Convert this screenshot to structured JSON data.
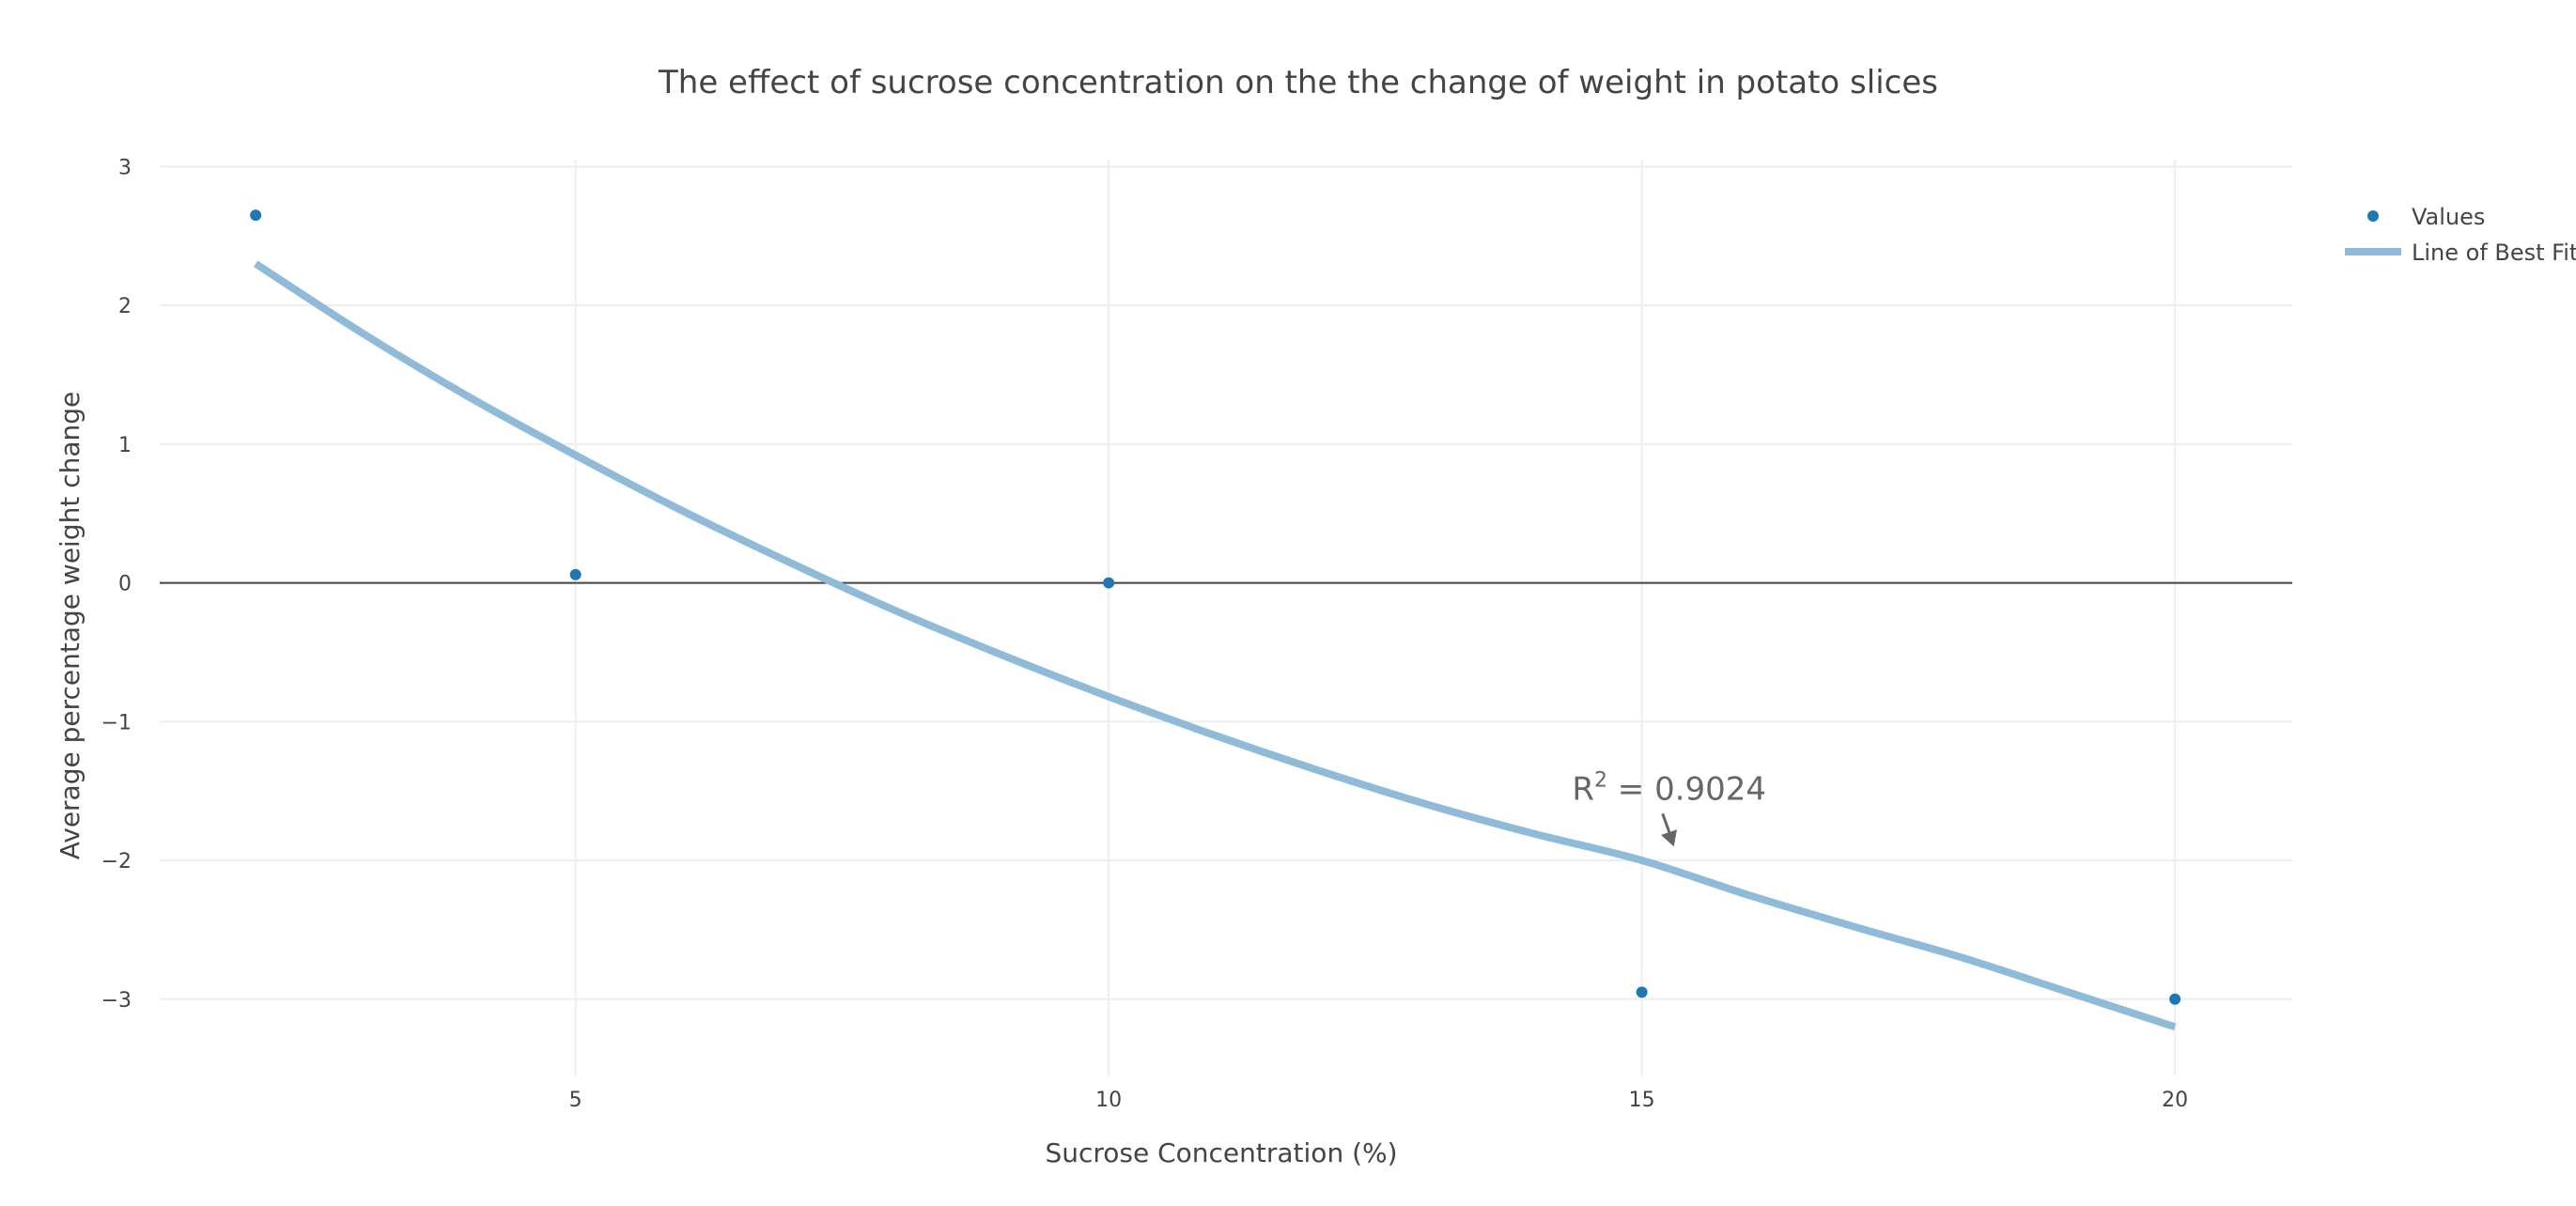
{
  "chart_data": {
    "type": "scatter",
    "title": "The effect of sucrose concentration on the the change of weight in potato slices",
    "xlabel": "Sucrose Concentration (%)",
    "ylabel": "Average percentage weight change",
    "xlim": [
      1.1,
      21.1
    ],
    "ylim": [
      -3.55,
      3.05
    ],
    "xticks": [
      5,
      10,
      15,
      20
    ],
    "yticks": [
      3,
      2,
      1,
      0,
      -1,
      -2,
      -3
    ],
    "grid": true,
    "legend_position": "top-right",
    "series": [
      {
        "name": "Values",
        "mode": "markers",
        "color": "#1f77b4",
        "x": [
          2,
          5,
          10,
          15,
          20
        ],
        "y": [
          2.65,
          0.06,
          0.0,
          -2.95,
          -3.0
        ]
      },
      {
        "name": "Line of Best Fit",
        "mode": "line",
        "color": "#8fbbd9",
        "x": [
          2,
          3,
          4,
          5,
          6,
          7,
          8,
          9,
          10,
          11,
          12,
          13,
          14,
          15,
          16,
          17,
          18,
          19,
          20
        ],
        "y": [
          2.3,
          1.8,
          1.34,
          0.92,
          0.52,
          0.15,
          -0.2,
          -0.52,
          -0.82,
          -1.1,
          -1.36,
          -1.6,
          -1.81,
          -2.0,
          -2.25,
          -2.48,
          -2.7,
          -2.95,
          -3.2
        ]
      }
    ],
    "annotation": {
      "r_label": "R",
      "r_sup": "2",
      "value_text": " = 0.9024",
      "x": 15.3,
      "y": -1.9,
      "color": "#666666"
    }
  }
}
